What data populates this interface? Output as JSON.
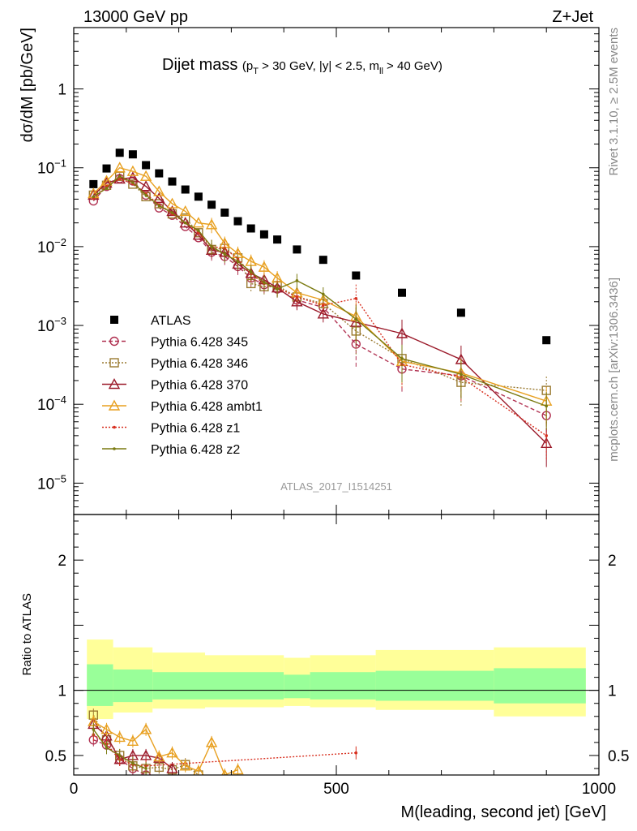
{
  "header": {
    "left": "13000 GeV pp",
    "right": "Z+Jet"
  },
  "side_labels": {
    "rivet": "Rivet 3.1.10, ≥ 2.5M events",
    "mcplots": "mcplots.cern.ch [arXiv:1306.3436]"
  },
  "analysis_id": "ATLAS_2017_I1514251",
  "chart_data": [
    {
      "type": "scatter",
      "panel": "main",
      "title": "Dijet mass",
      "title_cuts": {
        "pt_sym": "p",
        "pt_sub": "T",
        "pt_rest": " > 30 GeV, |y| < 2.5, m",
        "m_sub": "ll",
        "m_rest": " > 40 GeV)"
      },
      "ylabel": "dσ/dM [pb/GeV]",
      "xlim": [
        0,
        1000
      ],
      "ylim": [
        4e-06,
        6
      ],
      "yscale": "log",
      "xticks": [
        0,
        500,
        1000
      ],
      "yticks": [
        {
          "value": 1e-05,
          "base": "10",
          "exp": "−5"
        },
        {
          "value": 0.0001,
          "base": "10",
          "exp": "−4"
        },
        {
          "value": 0.001,
          "base": "10",
          "exp": "−3"
        },
        {
          "value": 0.01,
          "base": "10",
          "exp": "−2"
        },
        {
          "value": 0.1,
          "base": "10",
          "exp": "−1"
        },
        {
          "value": 1,
          "base": "1",
          "exp": ""
        }
      ],
      "legend_position": "middle-left",
      "series": [
        {
          "name": "ATLAS",
          "color": "#000000",
          "marker": "filled-square",
          "line": "none",
          "x": [
            37.5,
            62.5,
            87.5,
            112.5,
            137.5,
            162.5,
            187.5,
            212.5,
            237.5,
            262.5,
            287.5,
            312.5,
            337.5,
            362.5,
            387.5,
            425,
            475,
            537.5,
            625,
            737.5,
            900
          ],
          "y": [
            0.062,
            0.098,
            0.155,
            0.148,
            0.108,
            0.085,
            0.067,
            0.053,
            0.043,
            0.034,
            0.027,
            0.021,
            0.017,
            0.0143,
            0.0123,
            0.0092,
            0.0068,
            0.0043,
            0.0026,
            0.00145,
            0.00065
          ]
        },
        {
          "name": "Pythia 6.428 345",
          "color": "#b03050",
          "marker": "open-circle",
          "line": "dashed",
          "x": [
            37.5,
            62.5,
            87.5,
            112.5,
            137.5,
            162.5,
            187.5,
            212.5,
            237.5,
            262.5,
            287.5,
            312.5,
            337.5,
            362.5,
            387.5,
            425,
            475,
            537.5,
            625,
            737.5,
            900
          ],
          "y": [
            0.038,
            0.058,
            0.073,
            0.068,
            0.045,
            0.031,
            0.025,
            0.018,
            0.013,
            0.0085,
            0.0075,
            0.0056,
            0.004,
            0.0033,
            0.0029,
            0.0021,
            0.0017,
            0.00058,
            0.00028,
            0.00023,
            7.2e-05
          ]
        },
        {
          "name": "Pythia 6.428 346",
          "color": "#9a7a30",
          "marker": "open-square",
          "line": "dotted",
          "x": [
            37.5,
            62.5,
            87.5,
            112.5,
            137.5,
            162.5,
            187.5,
            212.5,
            237.5,
            262.5,
            287.5,
            312.5,
            337.5,
            362.5,
            387.5,
            425,
            475,
            537.5,
            625,
            737.5,
            900
          ],
          "y": [
            0.045,
            0.06,
            0.078,
            0.062,
            0.043,
            0.035,
            0.026,
            0.023,
            0.015,
            0.0092,
            0.0095,
            0.0072,
            0.0034,
            0.0031,
            0.0032,
            0.0023,
            0.0019,
            0.00085,
            0.00038,
            0.00019,
            0.00015
          ]
        },
        {
          "name": "Pythia 6.428 370",
          "color": "#9b1a2a",
          "marker": "open-triangle",
          "line": "solid",
          "x": [
            37.5,
            62.5,
            87.5,
            112.5,
            137.5,
            162.5,
            187.5,
            212.5,
            237.5,
            262.5,
            287.5,
            312.5,
            337.5,
            362.5,
            387.5,
            425,
            475,
            537.5,
            625,
            737.5,
            900
          ],
          "y": [
            0.045,
            0.064,
            0.072,
            0.075,
            0.058,
            0.041,
            0.028,
            0.02,
            0.014,
            0.009,
            0.0085,
            0.006,
            0.0046,
            0.0038,
            0.003,
            0.002,
            0.0014,
            0.0011,
            0.00079,
            0.00037,
            3.2e-05
          ]
        },
        {
          "name": "Pythia 6.428 ambt1",
          "color": "#e8a020",
          "marker": "open-triangle",
          "line": "solid",
          "x": [
            37.5,
            62.5,
            87.5,
            112.5,
            137.5,
            162.5,
            187.5,
            212.5,
            237.5,
            262.5,
            287.5,
            312.5,
            337.5,
            362.5,
            387.5,
            425,
            475,
            537.5,
            625,
            737.5,
            900
          ],
          "y": [
            0.047,
            0.068,
            0.1,
            0.09,
            0.078,
            0.05,
            0.035,
            0.028,
            0.02,
            0.019,
            0.011,
            0.0082,
            0.0065,
            0.0055,
            0.004,
            0.0026,
            0.0021,
            0.0013,
            0.00035,
            0.00025,
            0.00011
          ]
        },
        {
          "name": "Pythia 6.428 z1",
          "color": "#d83020",
          "marker": "small-dot",
          "line": "dotted",
          "x": [
            37.5,
            62.5,
            87.5,
            112.5,
            137.5,
            162.5,
            187.5,
            212.5,
            237.5,
            262.5,
            287.5,
            312.5,
            337.5,
            362.5,
            387.5,
            425,
            475,
            537.5,
            625,
            737.5,
            900
          ],
          "y": [
            0.041,
            0.058,
            0.072,
            0.063,
            0.047,
            0.034,
            0.026,
            0.02,
            0.015,
            0.01,
            0.0095,
            0.007,
            0.0045,
            0.0034,
            0.003,
            0.0023,
            0.0018,
            0.0022,
            0.00032,
            0.00022,
            4e-05
          ]
        },
        {
          "name": "Pythia 6.428 z2",
          "color": "#7a7a10",
          "marker": "small-dot",
          "line": "solid",
          "x": [
            37.5,
            62.5,
            87.5,
            112.5,
            137.5,
            162.5,
            187.5,
            212.5,
            237.5,
            262.5,
            287.5,
            312.5,
            337.5,
            362.5,
            387.5,
            425,
            475,
            537.5,
            625,
            737.5,
            900
          ],
          "y": [
            0.043,
            0.055,
            0.078,
            0.065,
            0.045,
            0.033,
            0.027,
            0.02,
            0.016,
            0.01,
            0.008,
            0.0065,
            0.0048,
            0.0035,
            0.0029,
            0.0037,
            0.0025,
            0.0012,
            0.00038,
            0.00024,
            9.5e-05
          ]
        }
      ]
    },
    {
      "type": "scatter",
      "panel": "ratio",
      "ylabel": "Ratio to ATLAS",
      "xlabel": "M(leading, second jet) [GeV]",
      "xlim": [
        0,
        1000
      ],
      "ylim": [
        0.35,
        2.35
      ],
      "yticks": [
        0.5,
        1,
        2
      ],
      "reference_line": 1,
      "bands": {
        "edges": [
          25,
          75,
          150,
          250,
          400,
          450,
          575,
          800,
          975
        ],
        "inner_color": "#99ff99",
        "outer_color": "#ffff99",
        "inner_lo": [
          0.88,
          0.91,
          0.93,
          0.93,
          0.94,
          0.93,
          0.92,
          0.9
        ],
        "inner_hi": [
          1.2,
          1.16,
          1.14,
          1.14,
          1.12,
          1.14,
          1.15,
          1.17
        ],
        "outer_lo": [
          0.78,
          0.83,
          0.86,
          0.87,
          0.88,
          0.87,
          0.85,
          0.8
        ],
        "outer_hi": [
          1.39,
          1.33,
          1.29,
          1.27,
          1.25,
          1.27,
          1.31,
          1.33
        ]
      },
      "series": [
        {
          "name": "Pythia 6.428 345",
          "x": [
            37.5,
            62.5,
            87.5,
            112.5,
            137.5
          ],
          "y": [
            0.62,
            0.58,
            0.47,
            0.4,
            0.35
          ]
        },
        {
          "name": "Pythia 6.428 346",
          "x": [
            37.5,
            62.5,
            87.5,
            112.5,
            137.5,
            162.5,
            187.5,
            212.5,
            237.5
          ],
          "y": [
            0.81,
            0.62,
            0.5,
            0.42,
            0.4,
            0.41,
            0.39,
            0.43,
            0.35
          ]
        },
        {
          "name": "Pythia 6.428 370",
          "x": [
            37.5,
            62.5,
            87.5,
            112.5,
            137.5,
            162.5,
            187.5
          ],
          "y": [
            0.74,
            0.65,
            0.47,
            0.5,
            0.5,
            0.48,
            0.4
          ]
        },
        {
          "name": "Pythia 6.428 ambt1",
          "x": [
            37.5,
            62.5,
            87.5,
            112.5,
            137.5,
            162.5,
            187.5,
            212.5,
            237.5,
            262.5,
            287.5,
            312.5
          ],
          "y": [
            0.76,
            0.7,
            0.64,
            0.61,
            0.7,
            0.49,
            0.52,
            0.42,
            0.38,
            0.6,
            0.35,
            0.39
          ]
        },
        {
          "name": "Pythia 6.428 z1",
          "x": [
            37.5,
            62.5,
            87.5,
            112.5,
            137.5,
            537.5
          ],
          "y": [
            0.66,
            0.59,
            0.47,
            0.43,
            0.42,
            0.52
          ]
        },
        {
          "name": "Pythia 6.428 z2",
          "x": [
            37.5,
            62.5,
            87.5,
            112.5,
            137.5
          ],
          "y": [
            0.7,
            0.56,
            0.5,
            0.44,
            0.4
          ]
        }
      ]
    }
  ]
}
